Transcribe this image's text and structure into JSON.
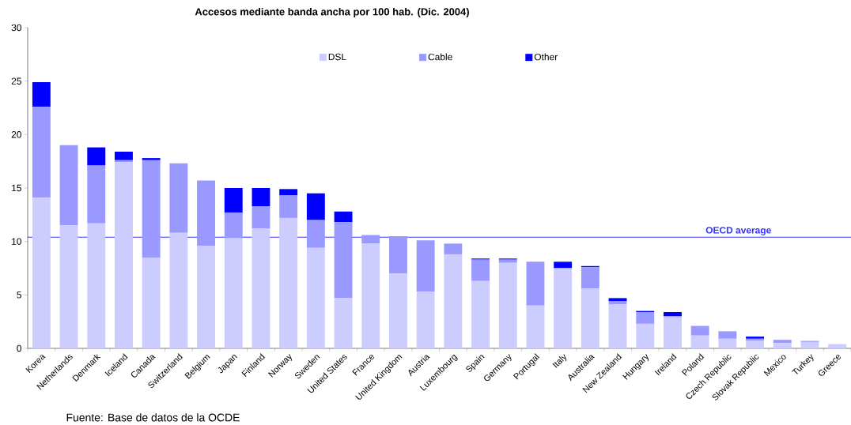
{
  "chart_data": {
    "type": "bar",
    "stacked": true,
    "title": "Accesos mediante banda ancha por 100 hab. (Dic. 2004)",
    "categories": [
      "Korea",
      "Netherlands",
      "Denmark",
      "Iceland",
      "Canada",
      "Switzerland",
      "Belgium",
      "Japan",
      "Finland",
      "Norway",
      "Sweden",
      "United States",
      "France",
      "United Kingdom",
      "Austria",
      "Luxembourg",
      "Spain",
      "Germany",
      "Portugal",
      "Italy",
      "Australia",
      "New Zealand",
      "Hungary",
      "Ireland",
      "Poland",
      "Czech Republic",
      "Slovak Republic",
      "Mexico",
      "Turkey",
      "Greece"
    ],
    "series": [
      {
        "name": "DSL",
        "color": "#ccccff",
        "values": [
          14.1,
          11.5,
          11.7,
          17.4,
          8.5,
          10.8,
          9.6,
          10.3,
          11.2,
          12.2,
          9.4,
          4.7,
          9.8,
          7.0,
          5.3,
          8.8,
          6.3,
          8.0,
          4.0,
          7.5,
          5.6,
          4.1,
          2.3,
          2.9,
          1.2,
          0.9,
          0.7,
          0.5,
          0.6,
          0.4
        ]
      },
      {
        "name": "Cable",
        "color": "#9999ff",
        "values": [
          8.5,
          7.5,
          5.4,
          0.2,
          9.1,
          6.5,
          6.1,
          2.4,
          2.1,
          2.1,
          2.6,
          7.1,
          0.8,
          3.5,
          4.8,
          1.0,
          2.0,
          0.3,
          4.1,
          0,
          2.0,
          0.3,
          1.1,
          0.1,
          0.9,
          0.7,
          0.2,
          0.3,
          0.1,
          0
        ]
      },
      {
        "name": "Other",
        "color": "#0000ff",
        "values": [
          2.3,
          0,
          1.7,
          0.8,
          0.2,
          0,
          0,
          2.3,
          1.7,
          0.6,
          2.5,
          1.0,
          0,
          0,
          0,
          0,
          0.1,
          0.1,
          0,
          0.6,
          0.1,
          0.3,
          0.1,
          0.4,
          0,
          0,
          0.2,
          0,
          0,
          0
        ]
      }
    ],
    "ylim": [
      0,
      30
    ],
    "yticks": [
      0,
      5,
      10,
      15,
      20,
      25,
      30
    ],
    "grid": false,
    "legend": "top",
    "ref_lines": [
      {
        "axis": "y",
        "value": 10.4,
        "label": "OECD average",
        "color": "#3333ff"
      }
    ],
    "annotations": [
      "Fuente: Base de datos de la OCDE"
    ]
  }
}
